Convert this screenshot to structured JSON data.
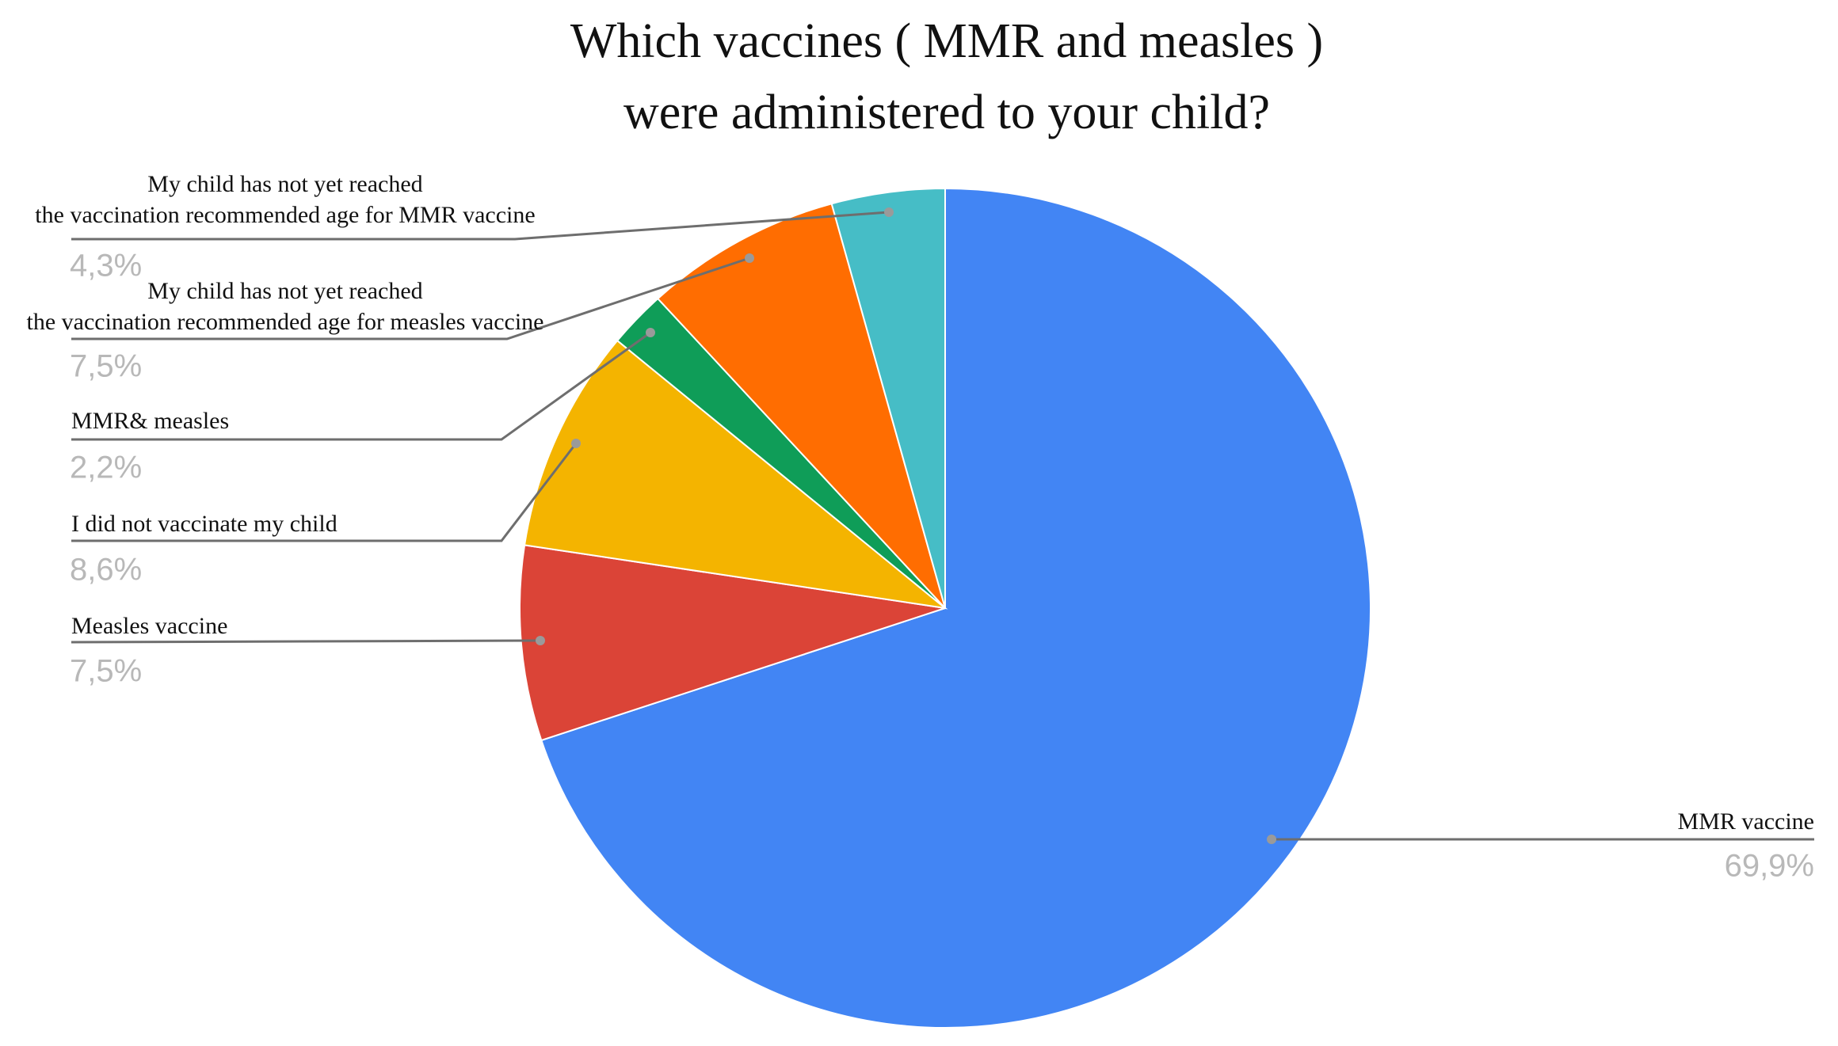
{
  "chart_data": {
    "type": "pie",
    "title": [
      "Which vaccines ( MMR and measles )",
      "were administered to your child?"
    ],
    "slices": [
      {
        "key": "mmr",
        "label_lines": [
          "MMR vaccine"
        ],
        "value": 69.9,
        "value_label": "69,9%",
        "color": "#4285f4"
      },
      {
        "key": "measles",
        "label_lines": [
          "Measles vaccine"
        ],
        "value": 7.5,
        "value_label": "7,5%",
        "color": "#db4437"
      },
      {
        "key": "novacc",
        "label_lines": [
          "I did not vaccinate my child"
        ],
        "value": 8.6,
        "value_label": "8,6%",
        "color": "#f4b400"
      },
      {
        "key": "both",
        "label_lines": [
          "MMR& measles"
        ],
        "value": 2.2,
        "value_label": "2,2%",
        "color": "#0f9d58"
      },
      {
        "key": "agemeasles",
        "label_lines": [
          "My child has not yet reached",
          "the vaccination recommended age for measles vaccine"
        ],
        "value": 7.5,
        "value_label": "7,5%",
        "color": "#ff6d01"
      },
      {
        "key": "agemmr",
        "label_lines": [
          "My child has not yet reached",
          "the vaccination recommended age for MMR vaccine"
        ],
        "value": 4.3,
        "value_label": "4,3%",
        "color": "#46bdc6"
      }
    ],
    "start": "12 o'clock",
    "direction": "clockwise",
    "legend": "none"
  }
}
